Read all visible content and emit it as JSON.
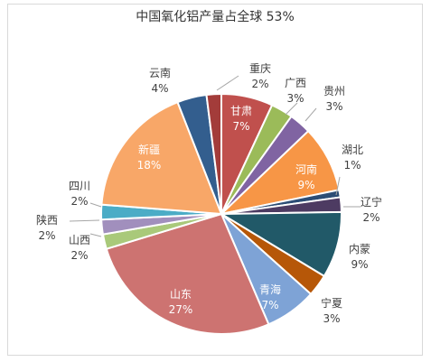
{
  "chart_data": {
    "type": "pie",
    "title": "中国氧化铝产量占全球 53%",
    "slices": [
      {
        "name": "甘肃",
        "value": 7,
        "label": "7%",
        "color": "#c0504d"
      },
      {
        "name": "广西",
        "value": 3,
        "label": "3%",
        "color": "#9bbb59"
      },
      {
        "name": "贵州",
        "value": 3,
        "label": "3%",
        "color": "#8064a2"
      },
      {
        "name": "河南",
        "value": 9,
        "label": "9%",
        "color": "#f79646"
      },
      {
        "name": "湖北",
        "value": 1,
        "label": "1%",
        "color": "#2c4d75"
      },
      {
        "name": "辽宁",
        "value": 2,
        "label": "2%",
        "color": "#4d3b62"
      },
      {
        "name": "内蒙",
        "value": 9,
        "label": "9%",
        "color": "#215968"
      },
      {
        "name": "宁夏",
        "value": 3,
        "label": "3%",
        "color": "#b65708"
      },
      {
        "name": "青海",
        "value": 7,
        "label": "7%",
        "color": "#7ea3d6"
      },
      {
        "name": "山东",
        "value": 27,
        "label": "27%",
        "color": "#cd7371"
      },
      {
        "name": "山西",
        "value": 2,
        "label": "2%",
        "color": "#a9c97a"
      },
      {
        "name": "陕西",
        "value": 2,
        "label": "2%",
        "color": "#a18fbd"
      },
      {
        "name": "四川",
        "value": 2,
        "label": "2%",
        "color": "#4bacc6"
      },
      {
        "name": "新疆",
        "value": 18,
        "label": "18%",
        "color": "#f8a768"
      },
      {
        "name": "云南",
        "value": 4,
        "label": "4%",
        "color": "#335e8e"
      },
      {
        "name": "重庆",
        "value": 2,
        "label": "2%",
        "color": "#a33c3a"
      }
    ]
  }
}
